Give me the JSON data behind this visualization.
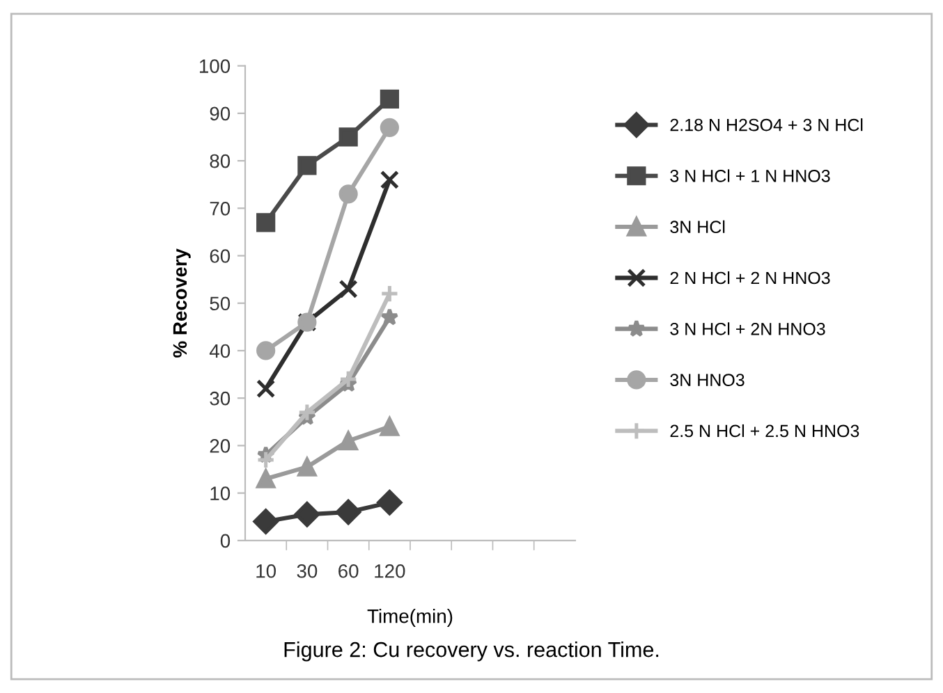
{
  "chart_data": {
    "type": "line",
    "xlabel": "Time(min)",
    "ylabel": "% Recovery",
    "categories": [
      "10",
      "30",
      "60",
      "120",
      null,
      null,
      null,
      null
    ],
    "series": [
      {
        "name": "2.18 N H2SO4 + 3 N HCl",
        "color": "#3a3a3a",
        "marker": "diamond",
        "values": [
          4,
          5.5,
          6,
          8,
          null,
          null,
          null,
          null
        ]
      },
      {
        "name": "3 N HCl + 1 N HNO3",
        "color": "#4a4a4a",
        "marker": "square",
        "values": [
          67,
          79,
          85,
          93,
          null,
          null,
          null,
          null
        ]
      },
      {
        "name": "3N HCl",
        "color": "#9a9a9a",
        "marker": "triangle",
        "values": [
          13,
          15.5,
          21,
          24,
          null,
          null,
          null,
          null
        ]
      },
      {
        "name": "2 N HCl + 2 N HNO3",
        "color": "#2e2e2e",
        "marker": "cross",
        "values": [
          32,
          46,
          53,
          76,
          null,
          null,
          null,
          null
        ]
      },
      {
        "name": "3 N HCl + 2N HNO3",
        "color": "#8c8c8c",
        "marker": "star",
        "values": [
          18,
          26,
          33,
          47,
          null,
          null,
          null,
          null
        ]
      },
      {
        "name": "3N HNO3",
        "color": "#a6a6a6",
        "marker": "circle",
        "values": [
          40,
          46,
          73,
          87,
          null,
          null,
          null,
          null
        ]
      },
      {
        "name": "2.5 N HCl + 2.5 N HNO3",
        "color": "#bdbdbd",
        "marker": "plus",
        "values": [
          17,
          27,
          34,
          52,
          null,
          null,
          null,
          null
        ]
      }
    ],
    "ylim": [
      0,
      100
    ],
    "yticks": [
      0,
      10,
      20,
      30,
      40,
      50,
      60,
      70,
      80,
      90,
      100
    ],
    "grid": false,
    "legend": "right",
    "annotations": [
      "Figure 2: Cu recovery vs. reaction Time."
    ]
  }
}
